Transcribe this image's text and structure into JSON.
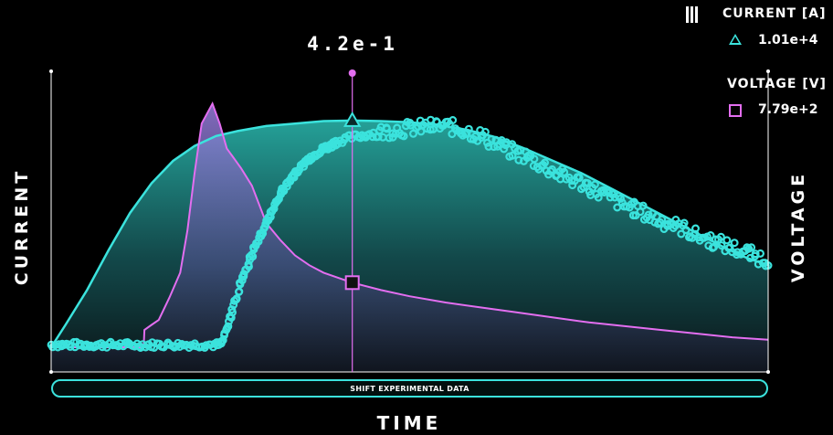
{
  "cursor": {
    "label": "4.2e-1",
    "x": 0.42
  },
  "legend": {
    "menu_icon": "menu-icon",
    "current": {
      "title": "CURRENT [A]",
      "value": "1.01e+4",
      "marker": "triangle",
      "color": "#3be3dd"
    },
    "voltage": {
      "title": "VOLTAGE [V]",
      "value": "7.79e+2",
      "marker": "square",
      "color": "#e36ef0"
    }
  },
  "controls": {
    "shift_label": "SHIFT EXPERIMENTAL DATA"
  },
  "chart_data": {
    "type": "line",
    "xlabel": "TIME",
    "ylabel_left": "CURRENT",
    "ylabel_right": "VOLTAGE",
    "xlim": [
      0,
      1
    ],
    "ylim_left": [
      0,
      1
    ],
    "ylim_right": [
      0,
      1
    ],
    "grid": false,
    "legend_position": "top-right",
    "series": [
      {
        "name": "CURRENT [A]",
        "style": "line-area",
        "color": "#3be3dd",
        "x": [
          0,
          0.02,
          0.05,
          0.08,
          0.11,
          0.14,
          0.17,
          0.2,
          0.23,
          0.26,
          0.3,
          0.34,
          0.38,
          0.42,
          0.46,
          0.5,
          0.54,
          0.58,
          0.62,
          0.66,
          0.7,
          0.74,
          0.78,
          0.82,
          0.86,
          0.9,
          0.94,
          0.97,
          1.0
        ],
        "y": [
          0.0,
          0.09,
          0.23,
          0.39,
          0.54,
          0.66,
          0.75,
          0.81,
          0.85,
          0.87,
          0.89,
          0.9,
          0.91,
          0.912,
          0.91,
          0.905,
          0.895,
          0.875,
          0.845,
          0.8,
          0.75,
          0.7,
          0.64,
          0.58,
          0.52,
          0.46,
          0.4,
          0.36,
          0.33
        ]
      },
      {
        "name": "VOLTAGE [V]",
        "style": "line-area",
        "color": "#e36ef0",
        "x": [
          0,
          0.129,
          0.13,
          0.14,
          0.15,
          0.165,
          0.18,
          0.19,
          0.2,
          0.21,
          0.225,
          0.235,
          0.245,
          0.255,
          0.265,
          0.28,
          0.3,
          0.32,
          0.34,
          0.36,
          0.38,
          0.42,
          0.46,
          0.5,
          0.55,
          0.6,
          0.65,
          0.7,
          0.75,
          0.8,
          0.85,
          0.9,
          0.95,
          1.0
        ],
        "y": [
          0.0,
          0.0,
          0.07,
          0.09,
          0.11,
          0.2,
          0.3,
          0.47,
          0.7,
          0.9,
          0.98,
          0.9,
          0.8,
          0.76,
          0.72,
          0.65,
          0.5,
          0.43,
          0.37,
          0.33,
          0.3,
          0.26,
          0.23,
          0.205,
          0.18,
          0.16,
          0.14,
          0.12,
          0.1,
          0.085,
          0.07,
          0.055,
          0.04,
          0.03
        ]
      },
      {
        "name": "Experimental",
        "style": "scatter",
        "color": "#3be3dd",
        "x": [
          0,
          0.02,
          0.04,
          0.06,
          0.08,
          0.1,
          0.12,
          0.14,
          0.16,
          0.18,
          0.2,
          0.22,
          0.235,
          0.24,
          0.25,
          0.26,
          0.27,
          0.28,
          0.29,
          0.3,
          0.31,
          0.32,
          0.33,
          0.34,
          0.35,
          0.36,
          0.37,
          0.38,
          0.39,
          0.4,
          0.42,
          0.44,
          0.46,
          0.48,
          0.5,
          0.52,
          0.54,
          0.56,
          0.58,
          0.6,
          0.62,
          0.64,
          0.66,
          0.68,
          0.7,
          0.72,
          0.74,
          0.76,
          0.78,
          0.8,
          0.82,
          0.84,
          0.86,
          0.88,
          0.9,
          0.92,
          0.94,
          0.96,
          0.98,
          1.0
        ],
        "y": [
          0.01,
          0.01,
          0.01,
          0.01,
          0.01,
          0.01,
          0.01,
          0.01,
          0.01,
          0.01,
          0.01,
          0.01,
          0.01,
          0.03,
          0.12,
          0.22,
          0.3,
          0.37,
          0.44,
          0.5,
          0.56,
          0.62,
          0.66,
          0.7,
          0.73,
          0.76,
          0.78,
          0.8,
          0.81,
          0.83,
          0.845,
          0.855,
          0.865,
          0.875,
          0.88,
          0.885,
          0.89,
          0.885,
          0.87,
          0.85,
          0.82,
          0.79,
          0.77,
          0.74,
          0.71,
          0.68,
          0.66,
          0.63,
          0.6,
          0.57,
          0.55,
          0.52,
          0.5,
          0.48,
          0.45,
          0.43,
          0.41,
          0.39,
          0.37,
          0.35
        ]
      }
    ]
  }
}
